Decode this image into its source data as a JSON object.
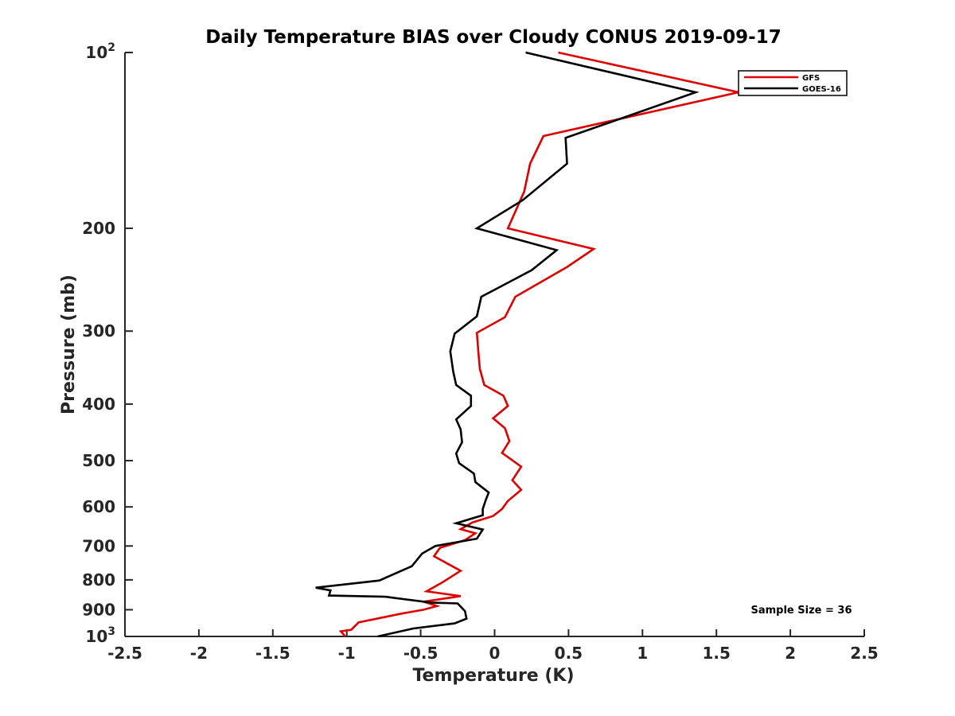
{
  "chart_data": {
    "type": "line",
    "title": "Daily Temperature BIAS over Cloudy CONUS 2019-09-17",
    "xlabel": "Temperature (K)",
    "ylabel": "Pressure (mb)",
    "xlim": [
      -2.5,
      2.5
    ],
    "ylim": [
      100,
      1000
    ],
    "y_scale": "log",
    "y_reversed": true,
    "grid": false,
    "legend_position": "top-right",
    "x_ticks": [
      {
        "value": -2.5,
        "label": "-2.5"
      },
      {
        "value": -2,
        "label": "-2"
      },
      {
        "value": -1.5,
        "label": "-1.5"
      },
      {
        "value": -1,
        "label": "-1"
      },
      {
        "value": -0.5,
        "label": "-0.5"
      },
      {
        "value": 0,
        "label": "0"
      },
      {
        "value": 0.5,
        "label": "0.5"
      },
      {
        "value": 1,
        "label": "1"
      },
      {
        "value": 1.5,
        "label": "1.5"
      },
      {
        "value": 2,
        "label": "2"
      },
      {
        "value": 2.5,
        "label": "2.5"
      }
    ],
    "y_ticks": [
      {
        "value": 100,
        "base": "10",
        "exp": "2"
      },
      {
        "value": 200,
        "label": "200"
      },
      {
        "value": 300,
        "label": "300"
      },
      {
        "value": 400,
        "label": "400"
      },
      {
        "value": 500,
        "label": "500"
      },
      {
        "value": 600,
        "label": "600"
      },
      {
        "value": 700,
        "label": "700"
      },
      {
        "value": 800,
        "label": "800"
      },
      {
        "value": 900,
        "label": "900"
      },
      {
        "value": 1000,
        "base": "10",
        "exp": "3"
      }
    ],
    "annotation": "Sample Size = 36",
    "series": [
      {
        "name": "GFS",
        "color": "#e00000",
        "points": [
          [
            0.43,
            100
          ],
          [
            1.65,
            117
          ],
          [
            0.33,
            139
          ],
          [
            0.24,
            155
          ],
          [
            0.2,
            173
          ],
          [
            0.09,
            200
          ],
          [
            0.67,
            217
          ],
          [
            0.49,
            233
          ],
          [
            0.14,
            262
          ],
          [
            0.07,
            284
          ],
          [
            -0.12,
            302
          ],
          [
            -0.11,
            326
          ],
          [
            -0.1,
            348
          ],
          [
            -0.07,
            371
          ],
          [
            0.06,
            387
          ],
          [
            0.09,
            403
          ],
          [
            -0.01,
            423
          ],
          [
            0.07,
            440
          ],
          [
            0.1,
            463
          ],
          [
            0.05,
            485
          ],
          [
            0.18,
            512
          ],
          [
            0.12,
            540
          ],
          [
            0.18,
            561
          ],
          [
            0.09,
            586
          ],
          [
            0.05,
            605
          ],
          [
            -0.01,
            622
          ],
          [
            -0.15,
            638
          ],
          [
            -0.23,
            655
          ],
          [
            -0.13,
            666
          ],
          [
            -0.2,
            684
          ],
          [
            -0.37,
            705
          ],
          [
            -0.41,
            729
          ],
          [
            -0.23,
            772
          ],
          [
            -0.36,
            810
          ],
          [
            -0.46,
            837
          ],
          [
            -0.23,
            853
          ],
          [
            -0.48,
            872
          ],
          [
            -0.39,
            887
          ],
          [
            -0.48,
            900
          ],
          [
            -0.63,
            914
          ],
          [
            -0.92,
            946
          ],
          [
            -0.97,
            974
          ],
          [
            -1.04,
            980
          ],
          [
            -1.01,
            1000
          ]
        ]
      },
      {
        "name": "GOES-16",
        "color": "#000000",
        "points": [
          [
            0.21,
            100
          ],
          [
            1.36,
            117
          ],
          [
            0.48,
            140
          ],
          [
            0.49,
            155
          ],
          [
            0.19,
            179
          ],
          [
            -0.12,
            200
          ],
          [
            0.42,
            218
          ],
          [
            0.25,
            236
          ],
          [
            -0.09,
            262
          ],
          [
            -0.12,
            283
          ],
          [
            -0.27,
            303
          ],
          [
            -0.3,
            325
          ],
          [
            -0.28,
            352
          ],
          [
            -0.26,
            371
          ],
          [
            -0.16,
            387
          ],
          [
            -0.16,
            403
          ],
          [
            -0.26,
            425
          ],
          [
            -0.23,
            442
          ],
          [
            -0.22,
            465
          ],
          [
            -0.26,
            486
          ],
          [
            -0.24,
            505
          ],
          [
            -0.14,
            526
          ],
          [
            -0.13,
            544
          ],
          [
            -0.04,
            567
          ],
          [
            -0.06,
            584
          ],
          [
            -0.08,
            605
          ],
          [
            -0.08,
            620
          ],
          [
            -0.26,
            640
          ],
          [
            -0.08,
            656
          ],
          [
            -0.12,
            680
          ],
          [
            -0.4,
            700
          ],
          [
            -0.49,
            721
          ],
          [
            -0.56,
            758
          ],
          [
            -0.78,
            802
          ],
          [
            -1.21,
            825
          ],
          [
            -1.11,
            834
          ],
          [
            -1.12,
            851
          ],
          [
            -0.74,
            855
          ],
          [
            -0.43,
            875
          ],
          [
            -0.25,
            878
          ],
          [
            -0.2,
            905
          ],
          [
            -0.19,
            932
          ],
          [
            -0.27,
            950
          ],
          [
            -0.55,
            969
          ],
          [
            -0.79,
            1000
          ]
        ]
      }
    ]
  }
}
